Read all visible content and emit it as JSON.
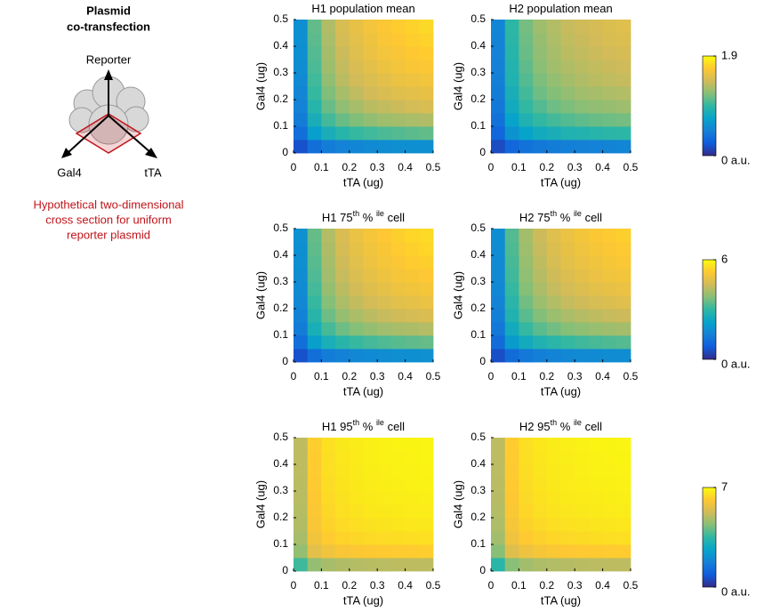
{
  "schematic": {
    "title": [
      "Plasmid",
      "co-transfection"
    ],
    "axes": [
      "Reporter",
      "Gal4",
      "tTA"
    ],
    "caption": [
      "Hypothetical two-dimensional",
      "cross section for uniform",
      "reporter plasmid"
    ]
  },
  "colormap": [
    "#352a87",
    "#0f5cdd",
    "#1481d6",
    "#06a4ca",
    "#2eb7a4",
    "#87bf77",
    "#d1bb59",
    "#fec832",
    "#f9fb0e"
  ],
  "chart_data": [
    {
      "type": "heatmap",
      "title": [
        "H1 population mean"
      ],
      "x_label": "tTA (ug)",
      "y_label": "Gal4 (ug)",
      "x": [
        0.025,
        0.075,
        0.125,
        0.175,
        0.225,
        0.275,
        0.325,
        0.375,
        0.425,
        0.475
      ],
      "y": [
        0.025,
        0.075,
        0.125,
        0.175,
        0.225,
        0.275,
        0.325,
        0.375,
        0.425,
        0.475
      ],
      "xlim": [
        0,
        0.5
      ],
      "ylim": [
        0,
        0.5
      ],
      "xticks": [
        0,
        0.1,
        0.2,
        0.3,
        0.4,
        0.5
      ],
      "yticks": [
        0,
        0.1,
        0.2,
        0.3,
        0.4,
        0.5
      ],
      "clim": [
        0,
        1.9
      ],
      "values": [
        [
          0.19,
          0.36,
          0.44,
          0.48,
          0.51,
          0.53,
          0.55,
          0.56,
          0.57,
          0.57
        ],
        [
          0.36,
          0.68,
          0.83,
          0.91,
          0.97,
          1.0,
          1.03,
          1.05,
          1.07,
          1.09
        ],
        [
          0.44,
          0.83,
          1.01,
          1.11,
          1.17,
          1.22,
          1.26,
          1.28,
          1.3,
          1.32
        ],
        [
          0.48,
          0.91,
          1.11,
          1.22,
          1.29,
          1.35,
          1.38,
          1.41,
          1.44,
          1.46
        ],
        [
          0.51,
          0.97,
          1.17,
          1.29,
          1.37,
          1.43,
          1.47,
          1.5,
          1.52,
          1.54
        ],
        [
          0.53,
          1.0,
          1.22,
          1.35,
          1.43,
          1.48,
          1.52,
          1.56,
          1.58,
          1.6
        ],
        [
          0.55,
          1.03,
          1.26,
          1.38,
          1.47,
          1.52,
          1.57,
          1.6,
          1.63,
          1.65
        ],
        [
          0.56,
          1.05,
          1.28,
          1.41,
          1.5,
          1.56,
          1.6,
          1.63,
          1.66,
          1.68
        ],
        [
          0.57,
          1.07,
          1.3,
          1.44,
          1.52,
          1.58,
          1.63,
          1.66,
          1.69,
          1.71
        ],
        [
          0.57,
          1.09,
          1.32,
          1.46,
          1.54,
          1.6,
          1.65,
          1.68,
          1.71,
          1.74
        ]
      ]
    },
    {
      "type": "heatmap",
      "title": [
        "H2 population mean"
      ],
      "x_label": "tTA (ug)",
      "y_label": "Gal4 (ug)",
      "x": [
        0.025,
        0.075,
        0.125,
        0.175,
        0.225,
        0.275,
        0.325,
        0.375,
        0.425,
        0.475
      ],
      "y": [
        0.025,
        0.075,
        0.125,
        0.175,
        0.225,
        0.275,
        0.325,
        0.375,
        0.425,
        0.475
      ],
      "xlim": [
        0,
        0.5
      ],
      "ylim": [
        0,
        0.5
      ],
      "xticks": [
        0,
        0.1,
        0.2,
        0.3,
        0.4,
        0.5
      ],
      "yticks": [
        0,
        0.1,
        0.2,
        0.3,
        0.4,
        0.5
      ],
      "clim": [
        0,
        1.9
      ],
      "values": [
        [
          0.16,
          0.31,
          0.38,
          0.42,
          0.44,
          0.46,
          0.47,
          0.48,
          0.49,
          0.5
        ],
        [
          0.31,
          0.59,
          0.71,
          0.79,
          0.83,
          0.87,
          0.89,
          0.91,
          0.93,
          0.94
        ],
        [
          0.38,
          0.71,
          0.87,
          0.96,
          1.01,
          1.05,
          1.08,
          1.11,
          1.12,
          1.14
        ],
        [
          0.42,
          0.79,
          0.96,
          1.05,
          1.12,
          1.16,
          1.2,
          1.22,
          1.24,
          1.26
        ],
        [
          0.44,
          0.83,
          1.01,
          1.12,
          1.18,
          1.23,
          1.27,
          1.29,
          1.31,
          1.33
        ],
        [
          0.46,
          0.87,
          1.05,
          1.16,
          1.23,
          1.28,
          1.32,
          1.35,
          1.37,
          1.39
        ],
        [
          0.47,
          0.89,
          1.08,
          1.2,
          1.27,
          1.32,
          1.35,
          1.38,
          1.4,
          1.42
        ],
        [
          0.48,
          0.91,
          1.11,
          1.22,
          1.29,
          1.35,
          1.38,
          1.41,
          1.43,
          1.45
        ],
        [
          0.49,
          0.93,
          1.12,
          1.24,
          1.31,
          1.37,
          1.4,
          1.43,
          1.46,
          1.48
        ],
        [
          0.5,
          0.94,
          1.14,
          1.26,
          1.33,
          1.39,
          1.42,
          1.45,
          1.48,
          1.5
        ]
      ]
    },
    {
      "type": "heatmap",
      "title": [
        "H1 75",
        "th",
        " % ",
        "ile",
        " cell"
      ],
      "x_label": "tTA (ug)",
      "y_label": "Gal4 (ug)",
      "x": [
        0.025,
        0.075,
        0.125,
        0.175,
        0.225,
        0.275,
        0.325,
        0.375,
        0.425,
        0.475
      ],
      "y": [
        0.025,
        0.075,
        0.125,
        0.175,
        0.225,
        0.275,
        0.325,
        0.375,
        0.425,
        0.475
      ],
      "xlim": [
        0,
        0.5
      ],
      "ylim": [
        0,
        0.5
      ],
      "xticks": [
        0,
        0.1,
        0.2,
        0.3,
        0.4,
        0.5
      ],
      "yticks": [
        0,
        0.1,
        0.2,
        0.3,
        0.4,
        0.5
      ],
      "clim": [
        0,
        6
      ],
      "values": [
        [
          0.6,
          1.14,
          1.39,
          1.53,
          1.62,
          1.69,
          1.74,
          1.77,
          1.81,
          1.83
        ],
        [
          1.14,
          2.16,
          2.63,
          2.9,
          3.07,
          3.19,
          3.28,
          3.35,
          3.41,
          3.46
        ],
        [
          1.39,
          2.63,
          3.2,
          3.53,
          3.73,
          3.89,
          4.0,
          4.08,
          4.14,
          4.2
        ],
        [
          1.53,
          2.9,
          3.53,
          3.89,
          4.12,
          4.28,
          4.4,
          4.49,
          4.57,
          4.63
        ],
        [
          1.62,
          3.07,
          3.73,
          4.12,
          4.36,
          4.54,
          4.66,
          4.76,
          4.84,
          4.91
        ],
        [
          1.69,
          3.19,
          3.89,
          4.28,
          4.54,
          4.72,
          4.85,
          4.96,
          5.03,
          5.1
        ],
        [
          1.74,
          3.28,
          4.0,
          4.4,
          4.66,
          4.85,
          4.98,
          5.1,
          5.17,
          5.24
        ],
        [
          1.77,
          3.35,
          4.08,
          4.49,
          4.76,
          4.96,
          5.1,
          5.2,
          5.29,
          5.36
        ],
        [
          1.81,
          3.41,
          4.14,
          4.57,
          4.84,
          5.03,
          5.17,
          5.29,
          5.37,
          5.45
        ],
        [
          1.83,
          3.46,
          4.2,
          4.63,
          4.91,
          5.1,
          5.24,
          5.36,
          5.45,
          5.52
        ]
      ]
    },
    {
      "type": "heatmap",
      "title": [
        "H2 75",
        "th",
        " % ",
        "ile",
        " cell"
      ],
      "x_label": "tTA (ug)",
      "y_label": "Gal4 (ug)",
      "x": [
        0.025,
        0.075,
        0.125,
        0.175,
        0.225,
        0.275,
        0.325,
        0.375,
        0.425,
        0.475
      ],
      "y": [
        0.025,
        0.075,
        0.125,
        0.175,
        0.225,
        0.275,
        0.325,
        0.375,
        0.425,
        0.475
      ],
      "xlim": [
        0,
        0.5
      ],
      "ylim": [
        0,
        0.5
      ],
      "xticks": [
        0,
        0.1,
        0.2,
        0.3,
        0.4,
        0.5
      ],
      "yticks": [
        0,
        0.1,
        0.2,
        0.3,
        0.4,
        0.5
      ],
      "clim": [
        0,
        6
      ],
      "values": [
        [
          0.55,
          1.08,
          1.32,
          1.46,
          1.55,
          1.62,
          1.67,
          1.7,
          1.74,
          1.76
        ],
        [
          1.08,
          2.05,
          2.5,
          2.76,
          2.93,
          3.05,
          3.14,
          3.21,
          3.27,
          3.32
        ],
        [
          1.32,
          2.5,
          3.05,
          3.37,
          3.57,
          3.73,
          3.84,
          3.92,
          3.98,
          4.04
        ],
        [
          1.46,
          2.76,
          3.37,
          3.72,
          3.95,
          4.11,
          4.23,
          4.32,
          4.4,
          4.46
        ],
        [
          1.55,
          2.93,
          3.57,
          3.95,
          4.19,
          4.37,
          4.49,
          4.59,
          4.67,
          4.74
        ],
        [
          1.62,
          3.05,
          3.73,
          4.11,
          4.37,
          4.55,
          4.68,
          4.79,
          4.86,
          4.93
        ],
        [
          1.67,
          3.14,
          3.84,
          4.23,
          4.49,
          4.68,
          4.81,
          4.93,
          5.0,
          5.07
        ],
        [
          1.7,
          3.21,
          3.92,
          4.32,
          4.59,
          4.79,
          4.93,
          5.03,
          5.12,
          5.19
        ],
        [
          1.74,
          3.27,
          3.98,
          4.4,
          4.67,
          4.86,
          5.0,
          5.12,
          5.2,
          5.28
        ],
        [
          1.76,
          3.32,
          4.04,
          4.46,
          4.74,
          4.93,
          5.07,
          5.19,
          5.28,
          5.35
        ]
      ]
    },
    {
      "type": "heatmap",
      "title": [
        "H1 95",
        "th",
        " % ",
        "ile",
        " cell"
      ],
      "x_label": "tTA (ug)",
      "y_label": "Gal4 (ug)",
      "x": [
        0.025,
        0.075,
        0.125,
        0.175,
        0.225,
        0.275,
        0.325,
        0.375,
        0.425,
        0.475
      ],
      "y": [
        0.025,
        0.075,
        0.125,
        0.175,
        0.225,
        0.275,
        0.325,
        0.375,
        0.425,
        0.475
      ],
      "xlim": [
        0,
        0.5
      ],
      "ylim": [
        0,
        0.5
      ],
      "xticks": [
        0,
        0.1,
        0.2,
        0.3,
        0.4,
        0.5
      ],
      "yticks": [
        0,
        0.1,
        0.2,
        0.3,
        0.4,
        0.5
      ],
      "clim": [
        0,
        7
      ],
      "values": [
        [
          3.67,
          4.53,
          4.76,
          4.86,
          4.92,
          4.96,
          4.98,
          5.01,
          5.02,
          5.03
        ],
        [
          4.53,
          5.6,
          5.88,
          6.01,
          6.08,
          6.13,
          6.16,
          6.18,
          6.2,
          6.22
        ],
        [
          4.76,
          5.88,
          6.18,
          6.31,
          6.38,
          6.44,
          6.46,
          6.49,
          6.51,
          6.53
        ],
        [
          4.86,
          6.01,
          6.31,
          6.44,
          6.52,
          6.57,
          6.6,
          6.63,
          6.65,
          6.67
        ],
        [
          4.92,
          6.08,
          6.38,
          6.52,
          6.59,
          6.65,
          6.68,
          6.71,
          6.73,
          6.75
        ],
        [
          4.96,
          6.13,
          6.44,
          6.57,
          6.65,
          6.71,
          6.74,
          6.76,
          6.78,
          6.8
        ],
        [
          4.98,
          6.16,
          6.47,
          6.61,
          6.68,
          6.74,
          6.77,
          6.8,
          6.82,
          6.84
        ],
        [
          5.01,
          6.18,
          6.5,
          6.63,
          6.71,
          6.77,
          6.8,
          6.83,
          6.85,
          6.87
        ],
        [
          5.02,
          6.2,
          6.52,
          6.65,
          6.73,
          6.79,
          6.82,
          6.85,
          6.87,
          6.89
        ],
        [
          5.03,
          6.22,
          6.53,
          6.67,
          6.75,
          6.8,
          6.83,
          6.86,
          6.88,
          6.9
        ]
      ]
    },
    {
      "type": "heatmap",
      "title": [
        "H2 95",
        "th",
        " % ",
        "ile",
        " cell"
      ],
      "x_label": "tTA (ug)",
      "y_label": "Gal4 (ug)",
      "x": [
        0.025,
        0.075,
        0.125,
        0.175,
        0.225,
        0.275,
        0.325,
        0.375,
        0.425,
        0.475
      ],
      "y": [
        0.025,
        0.075,
        0.125,
        0.175,
        0.225,
        0.275,
        0.325,
        0.375,
        0.425,
        0.475
      ],
      "xlim": [
        0,
        0.5
      ],
      "ylim": [
        0,
        0.5
      ],
      "xticks": [
        0,
        0.1,
        0.2,
        0.3,
        0.4,
        0.5
      ],
      "yticks": [
        0,
        0.1,
        0.2,
        0.3,
        0.4,
        0.5
      ],
      "clim": [
        0,
        7
      ],
      "values": [
        [
          3.4,
          4.4,
          4.7,
          4.82,
          4.89,
          4.94,
          4.97,
          5.0,
          5.01,
          5.02
        ],
        [
          4.4,
          5.5,
          5.82,
          5.96,
          6.05,
          6.1,
          6.14,
          6.16,
          6.18,
          6.2
        ],
        [
          4.7,
          5.82,
          6.14,
          6.28,
          6.36,
          6.42,
          6.45,
          6.48,
          6.5,
          6.52
        ],
        [
          4.82,
          5.96,
          6.28,
          6.42,
          6.5,
          6.56,
          6.59,
          6.62,
          6.64,
          6.66
        ],
        [
          4.89,
          6.05,
          6.36,
          6.5,
          6.58,
          6.64,
          6.67,
          6.7,
          6.72,
          6.74
        ],
        [
          4.94,
          6.1,
          6.42,
          6.56,
          6.64,
          6.7,
          6.73,
          6.75,
          6.77,
          6.79
        ],
        [
          4.97,
          6.14,
          6.45,
          6.59,
          6.67,
          6.73,
          6.76,
          6.79,
          6.81,
          6.83
        ],
        [
          5.0,
          6.16,
          6.48,
          6.62,
          6.7,
          6.75,
          6.79,
          6.82,
          6.84,
          6.86
        ],
        [
          5.01,
          6.18,
          6.5,
          6.64,
          6.72,
          6.77,
          6.81,
          6.84,
          6.86,
          6.88
        ],
        [
          5.02,
          6.2,
          6.52,
          6.66,
          6.74,
          6.79,
          6.83,
          6.86,
          6.88,
          6.9
        ]
      ]
    },
    {
      "type": "colorbar",
      "ylim": [
        0,
        1.9
      ],
      "yticks": [
        {
          "value": 0,
          "label": "0 a.u."
        },
        1.9
      ]
    },
    {
      "type": "colorbar",
      "ylim": [
        0,
        6
      ],
      "yticks": [
        {
          "value": 0,
          "label": "0 a.u."
        },
        6
      ]
    },
    {
      "type": "colorbar",
      "ylim": [
        0,
        7
      ],
      "yticks": [
        {
          "value": 0,
          "label": "0 a.u."
        },
        7
      ]
    }
  ]
}
